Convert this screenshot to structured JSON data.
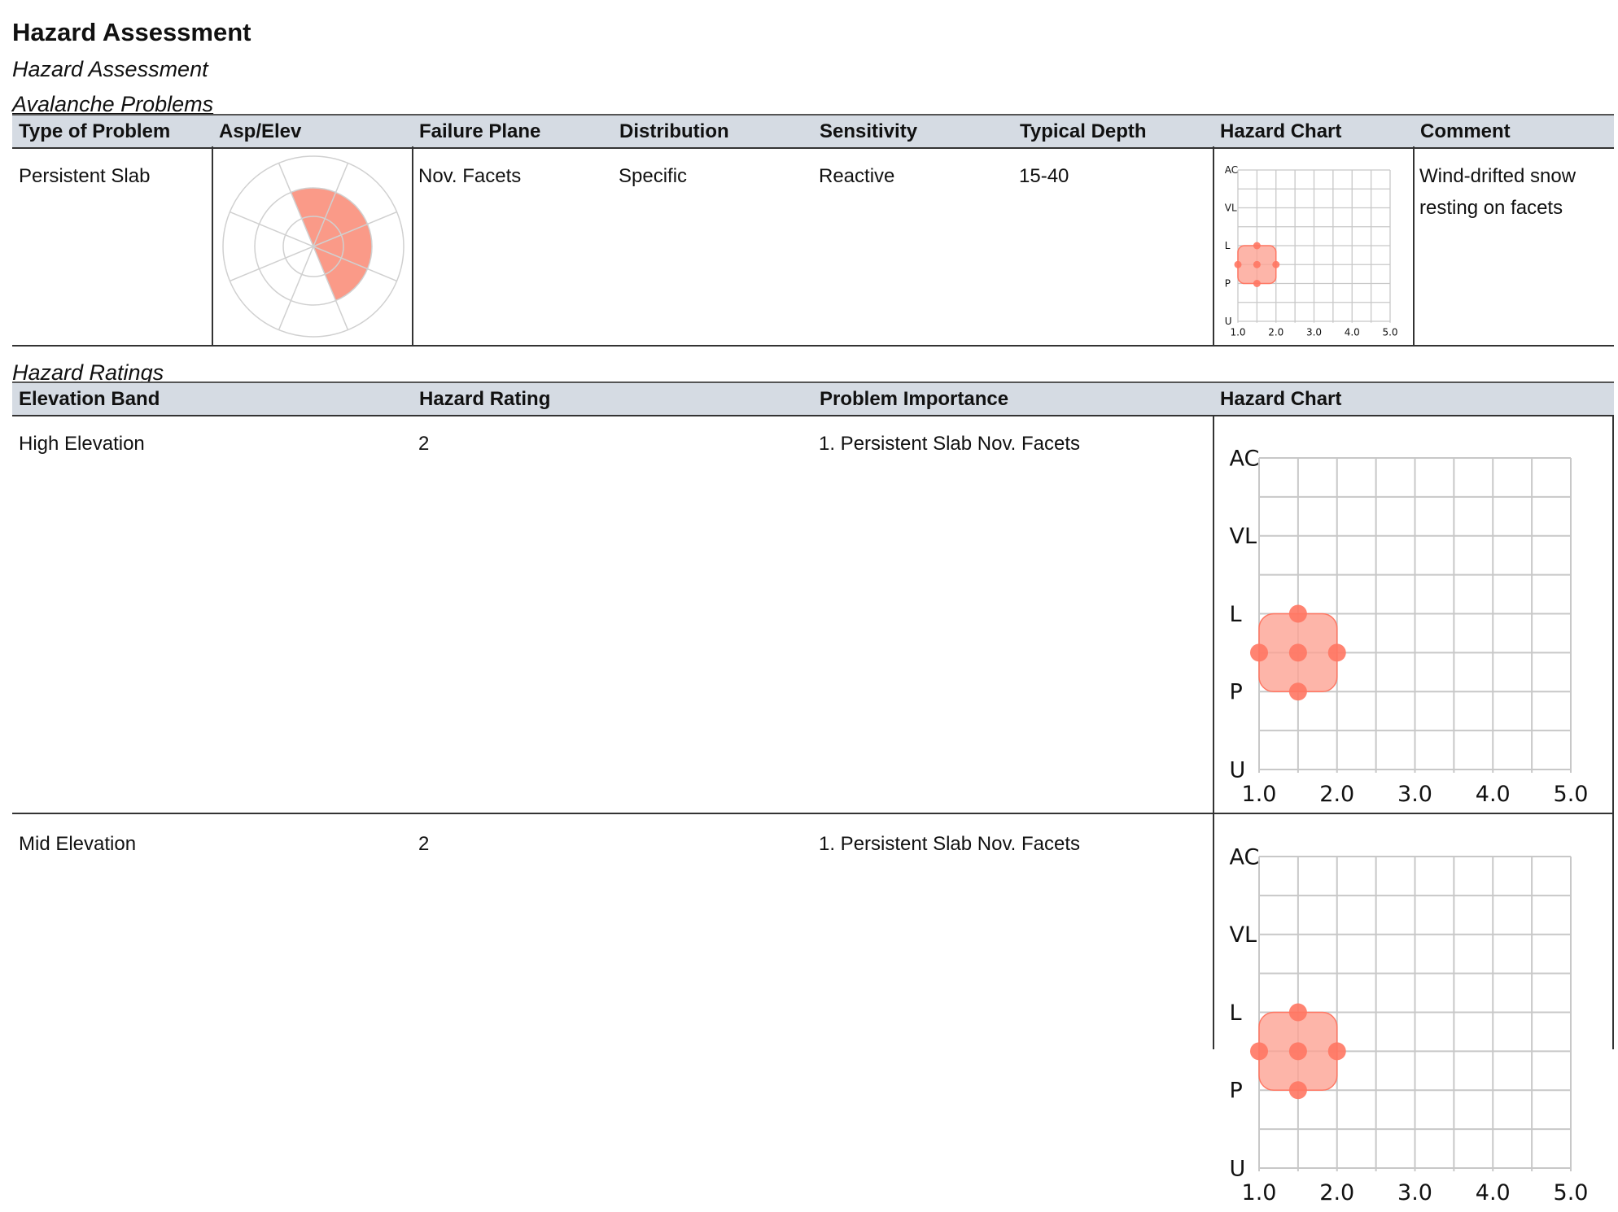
{
  "page": {
    "title": "Hazard Assessment",
    "subtitle": "Hazard Assessment"
  },
  "avalanche_problems": {
    "section_title": "Avalanche Problems",
    "columns": [
      "Type of Problem",
      "Asp/Elev",
      "Failure Plane",
      "Distribution",
      "Sensitivity",
      "Typical Depth",
      "Hazard Chart",
      "Comment"
    ],
    "rows": [
      {
        "type": "Persistent Slab",
        "failure_plane": "Nov. Facets",
        "distribution": "Specific",
        "sensitivity": "Reactive",
        "typical_depth": "15-40",
        "comment_lines": [
          "Wind-drifted snow",
          "resting on facets"
        ],
        "aspect_rose": {
          "aspects_filled": [
            "N",
            "NE",
            "E",
            "SE"
          ],
          "rings_total": 3,
          "rings_filled_from_center": 2,
          "fill_color": "#fa9a88"
        }
      }
    ]
  },
  "hazard_ratings": {
    "section_title": "Hazard Ratings",
    "columns": [
      "Elevation Band",
      "Hazard Rating",
      "Problem Importance",
      "Hazard Chart"
    ],
    "rows": [
      {
        "band": "High Elevation",
        "rating": "2",
        "importance": "1. Persistent Slab Nov. Facets"
      },
      {
        "band": "Mid Elevation",
        "rating": "2",
        "importance": "1. Persistent Slab Nov. Facets"
      }
    ]
  },
  "chart_data": {
    "type": "scatter",
    "x_ticks": [
      "1.0",
      "2.0",
      "3.0",
      "4.0",
      "5.0"
    ],
    "xlim": [
      1,
      5
    ],
    "y_labels": [
      "U",
      "P",
      "L",
      "VL",
      "AC"
    ],
    "ylim": [
      1,
      5
    ],
    "grid": true,
    "points": [
      {
        "x": 1.5,
        "y": 2.5
      },
      {
        "x": 1.5,
        "y": 3.0
      },
      {
        "x": 1.5,
        "y": 2.0
      },
      {
        "x": 1.0,
        "y": 2.5
      },
      {
        "x": 2.0,
        "y": 2.5
      }
    ],
    "range_box": {
      "x": [
        1.0,
        2.0
      ],
      "y": [
        2.0,
        3.0
      ]
    },
    "fill_color": "#fca294",
    "point_color": "#ff7763",
    "grid_color": "#c8c8c8"
  }
}
